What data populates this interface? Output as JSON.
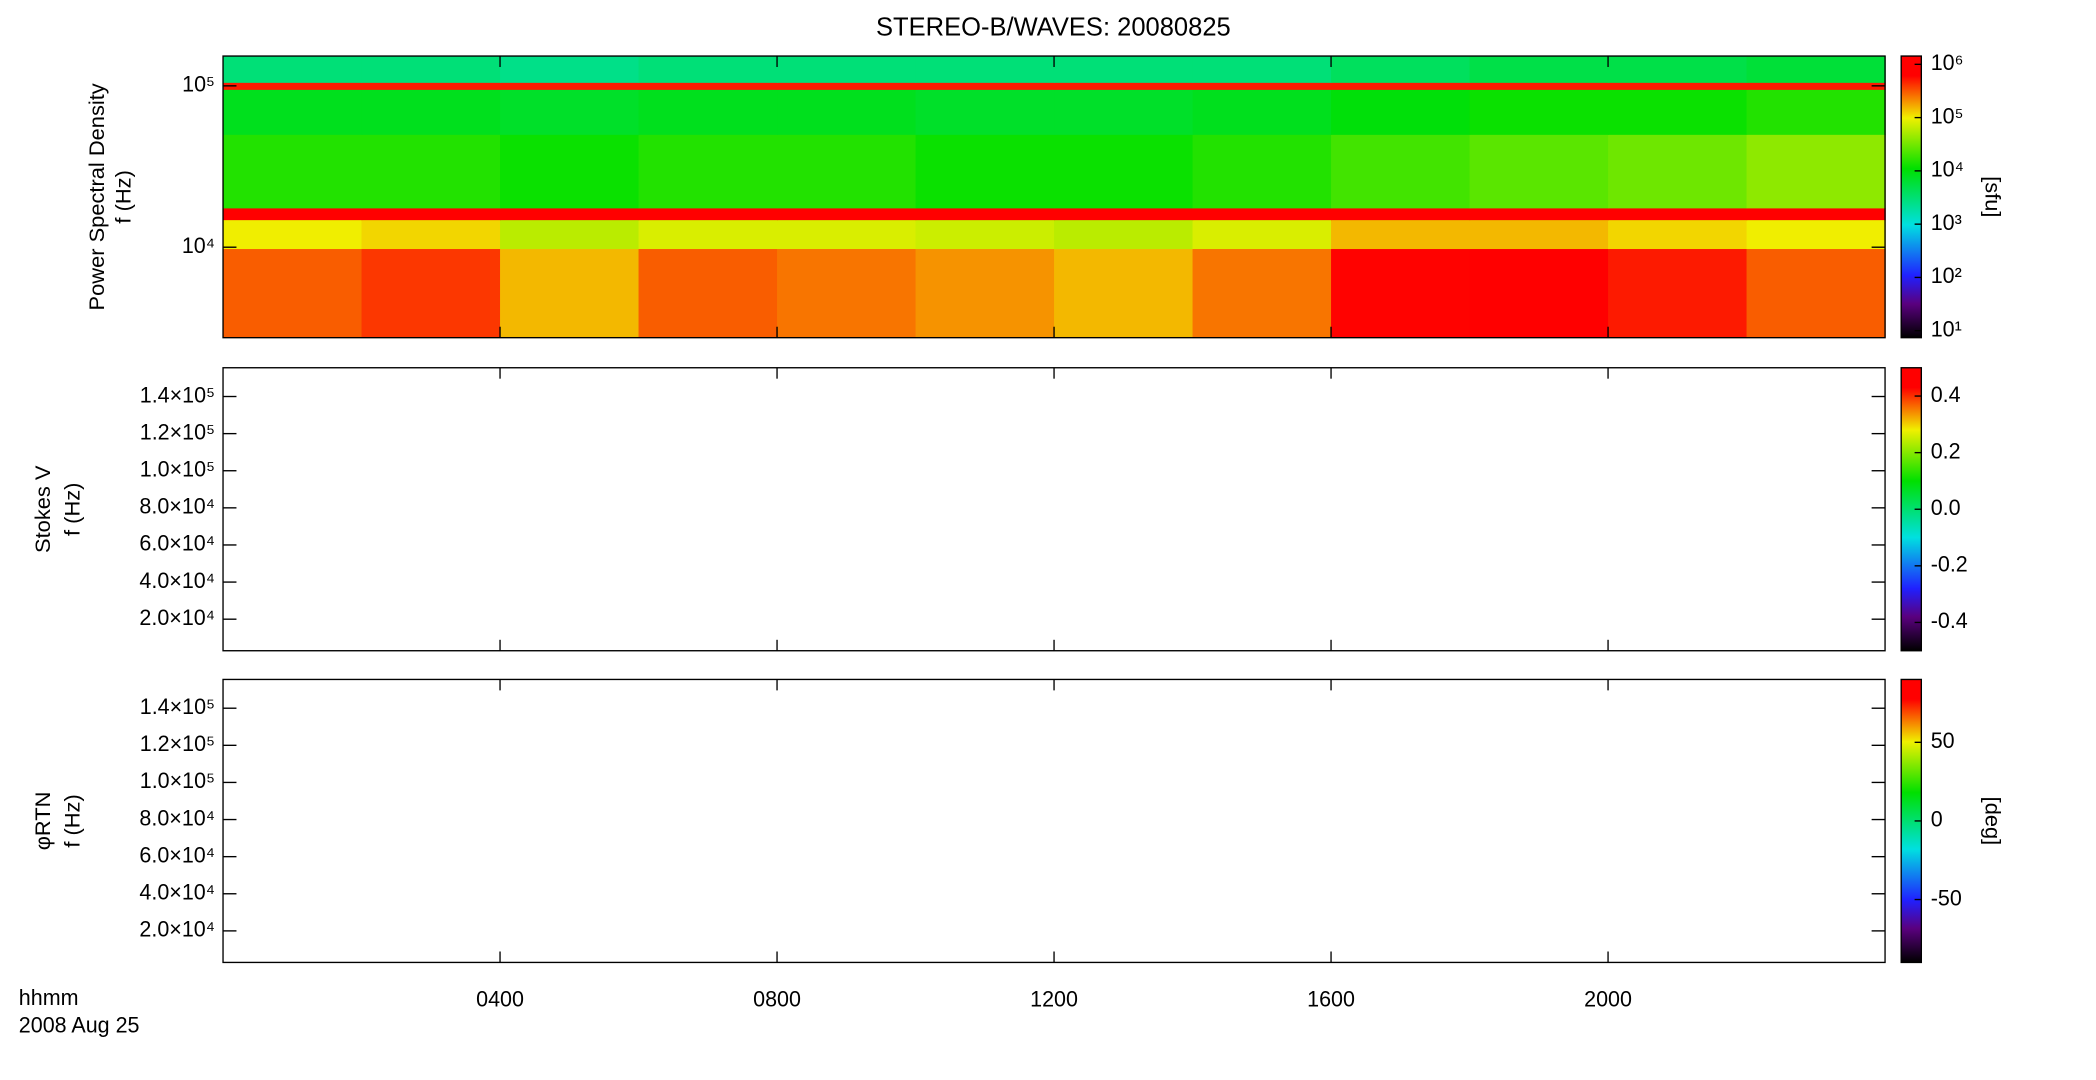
{
  "chart_data": [
    {
      "type": "heatmap",
      "title": "STEREO-B/WAVES: 20080825",
      "ylabel": [
        "Power Spectral Density",
        "f (Hz)"
      ],
      "ylog": true,
      "ylim": [
        2750,
        153000
      ],
      "yticks": [
        {
          "value": 10000,
          "label": "10⁴"
        },
        {
          "value": 100000,
          "label": "10⁵"
        }
      ],
      "x_bins": [
        0,
        2,
        4,
        6,
        8,
        10,
        12,
        14,
        16,
        18,
        20,
        22,
        24
      ],
      "y_bins": [
        2750,
        9800,
        14800,
        17500,
        50000,
        95000,
        105000,
        153000
      ],
      "values": [
        [
          300000,
          400000,
          150000,
          300000,
          250000,
          200000,
          150000,
          250000,
          600000,
          700000,
          500000,
          300000
        ],
        [
          100000,
          120000,
          60000,
          80000,
          80000,
          70000,
          60000,
          80000,
          150000,
          150000,
          120000,
          100000
        ],
        [
          1000000,
          1000000,
          1000000,
          1000000,
          1000000,
          1000000,
          1000000,
          1000000,
          1000000,
          1000000,
          1000000,
          1000000
        ],
        [
          15000,
          15000,
          12000,
          15000,
          15000,
          12000,
          12000,
          15000,
          20000,
          25000,
          30000,
          40000
        ],
        [
          8000,
          8000,
          7000,
          8000,
          8000,
          7000,
          7000,
          8000,
          10000,
          12000,
          12000,
          15000
        ],
        [
          500000,
          500000,
          500000,
          500000,
          500000,
          500000,
          500000,
          500000,
          500000,
          500000,
          500000,
          500000
        ],
        [
          3000,
          3000,
          2500,
          3000,
          3000,
          3000,
          3000,
          3000,
          4000,
          5000,
          5000,
          6000
        ]
      ],
      "colorscale": "rainbow",
      "clog": true,
      "clim": [
        7.4,
        1430000
      ],
      "cticks": [
        {
          "value": 10,
          "label": "10¹"
        },
        {
          "value": 100,
          "label": "10²"
        },
        {
          "value": 1000,
          "label": "10³"
        },
        {
          "value": 10000,
          "label": "10⁴"
        },
        {
          "value": 100000,
          "label": "10⁵"
        },
        {
          "value": 1000000,
          "label": "10⁶"
        }
      ],
      "colorbar_label": "[sfu]"
    },
    {
      "type": "heatmap",
      "ylabel": [
        "Stokes V",
        "f (Hz)"
      ],
      "ylim": [
        3000,
        155500
      ],
      "yticks": [
        {
          "value": 20000,
          "label": "2.0×10⁴"
        },
        {
          "value": 40000,
          "label": "4.0×10⁴"
        },
        {
          "value": 60000,
          "label": "6.0×10⁴"
        },
        {
          "value": 80000,
          "label": "8.0×10⁴"
        },
        {
          "value": 100000,
          "label": "1.0×10⁵"
        },
        {
          "value": 120000,
          "label": "1.2×10⁵"
        },
        {
          "value": 140000,
          "label": "1.4×10⁵"
        }
      ],
      "colorscale": "rainbow",
      "clim": [
        -0.5,
        0.5
      ],
      "cticks": [
        -0.4,
        -0.2,
        {
          "value": 0,
          "label": "0.0"
        },
        0.2,
        0.4
      ]
    },
    {
      "type": "heatmap",
      "ylabel": [
        "φRTN",
        "f (Hz)"
      ],
      "ylim": [
        3000,
        155500
      ],
      "yticks": [
        {
          "value": 20000,
          "label": "2.0×10⁴"
        },
        {
          "value": 40000,
          "label": "4.0×10⁴"
        },
        {
          "value": 60000,
          "label": "6.0×10⁴"
        },
        {
          "value": 80000,
          "label": "8.0×10⁴"
        },
        {
          "value": 100000,
          "label": "1.0×10⁵"
        },
        {
          "value": 120000,
          "label": "1.2×10⁵"
        },
        {
          "value": 140000,
          "label": "1.4×10⁵"
        }
      ],
      "colorscale": "rainbow",
      "clim": [
        -90,
        90
      ],
      "cticks": [
        -50,
        0,
        50
      ],
      "colorbar_label": "[deg]",
      "xlim": [
        0,
        24
      ],
      "xticks": [
        {
          "value": 4,
          "label": "0400"
        },
        {
          "value": 8,
          "label": "0800"
        },
        {
          "value": 12,
          "label": "1200"
        },
        {
          "value": 16,
          "label": "1600"
        },
        {
          "value": 20,
          "label": "2000"
        }
      ],
      "xlabel": "hhmm",
      "date_label": "2008 Aug 25"
    }
  ]
}
